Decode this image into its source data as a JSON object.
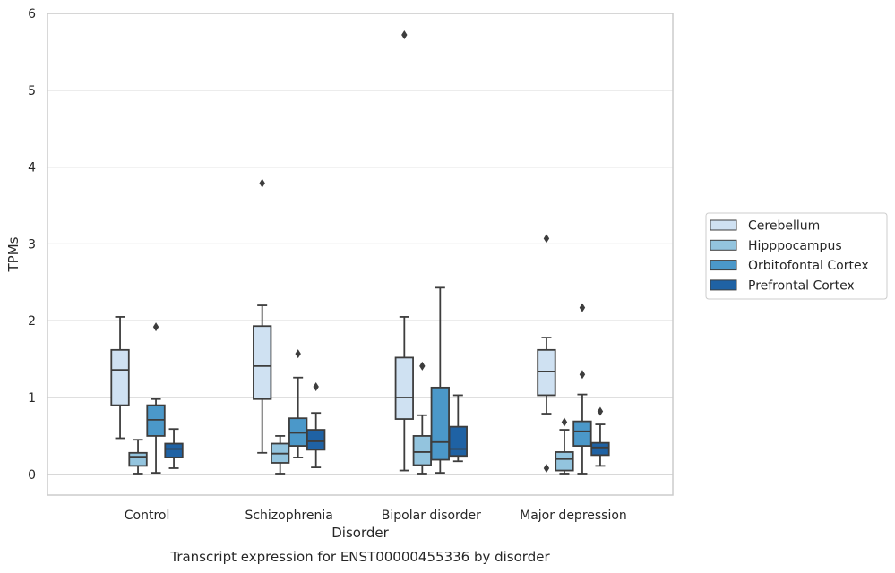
{
  "chart_data": {
    "type": "box",
    "title": "",
    "caption": "Transcript expression for ENST00000455336 by disorder",
    "xlabel": "Disorder",
    "ylabel": "TPMs",
    "ylim": [
      -0.27,
      6.0
    ],
    "yticks": [
      0,
      1,
      2,
      3,
      4,
      5,
      6
    ],
    "grid": true,
    "legend_position": "right",
    "categories": [
      "Control",
      "Schizophrenia",
      "Bipolar disorder",
      "Major depression"
    ],
    "series": [
      {
        "name": "Cerebellum",
        "color": "#cfe1f2",
        "boxes": [
          {
            "whisker_low": 0.47,
            "q1": 0.9,
            "median": 1.36,
            "q3": 1.62,
            "whisker_high": 2.05,
            "outliers": []
          },
          {
            "whisker_low": 0.28,
            "q1": 0.98,
            "median": 1.41,
            "q3": 1.93,
            "whisker_high": 2.2,
            "outliers": [
              3.79
            ]
          },
          {
            "whisker_low": 0.05,
            "q1": 0.72,
            "median": 1.0,
            "q3": 1.52,
            "whisker_high": 2.05,
            "outliers": [
              5.72
            ]
          },
          {
            "whisker_low": 0.79,
            "q1": 1.03,
            "median": 1.34,
            "q3": 1.62,
            "whisker_high": 1.78,
            "outliers": [
              3.07,
              0.08
            ]
          }
        ]
      },
      {
        "name": "Hipppocampus",
        "color": "#93c4de",
        "boxes": [
          {
            "whisker_low": 0.01,
            "q1": 0.11,
            "median": 0.23,
            "q3": 0.28,
            "whisker_high": 0.45,
            "outliers": []
          },
          {
            "whisker_low": 0.01,
            "q1": 0.15,
            "median": 0.27,
            "q3": 0.4,
            "whisker_high": 0.5,
            "outliers": []
          },
          {
            "whisker_low": 0.01,
            "q1": 0.12,
            "median": 0.29,
            "q3": 0.5,
            "whisker_high": 0.77,
            "outliers": [
              1.41
            ]
          },
          {
            "whisker_low": 0.01,
            "q1": 0.05,
            "median": 0.2,
            "q3": 0.29,
            "whisker_high": 0.58,
            "outliers": [
              0.68
            ]
          }
        ]
      },
      {
        "name": "Orbitofontal Cortex",
        "color": "#4b98c9",
        "boxes": [
          {
            "whisker_low": 0.02,
            "q1": 0.5,
            "median": 0.71,
            "q3": 0.9,
            "whisker_high": 0.98,
            "outliers": [
              1.92
            ]
          },
          {
            "whisker_low": 0.22,
            "q1": 0.37,
            "median": 0.54,
            "q3": 0.73,
            "whisker_high": 1.26,
            "outliers": [
              1.57
            ]
          },
          {
            "whisker_low": 0.02,
            "q1": 0.19,
            "median": 0.42,
            "q3": 1.13,
            "whisker_high": 2.43,
            "outliers": []
          },
          {
            "whisker_low": 0.01,
            "q1": 0.37,
            "median": 0.56,
            "q3": 0.69,
            "whisker_high": 1.04,
            "outliers": [
              1.3,
              2.17
            ]
          }
        ]
      },
      {
        "name": "Prefrontal Cortex",
        "color": "#1f62a4",
        "boxes": [
          {
            "whisker_low": 0.08,
            "q1": 0.22,
            "median": 0.33,
            "q3": 0.4,
            "whisker_high": 0.59,
            "outliers": []
          },
          {
            "whisker_low": 0.09,
            "q1": 0.32,
            "median": 0.43,
            "q3": 0.58,
            "whisker_high": 0.8,
            "outliers": [
              1.14
            ]
          },
          {
            "whisker_low": 0.17,
            "q1": 0.24,
            "median": 0.33,
            "q3": 0.62,
            "whisker_high": 1.03,
            "outliers": []
          },
          {
            "whisker_low": 0.11,
            "q1": 0.25,
            "median": 0.35,
            "q3": 0.41,
            "whisker_high": 0.65,
            "outliers": [
              0.82
            ]
          }
        ]
      }
    ]
  }
}
